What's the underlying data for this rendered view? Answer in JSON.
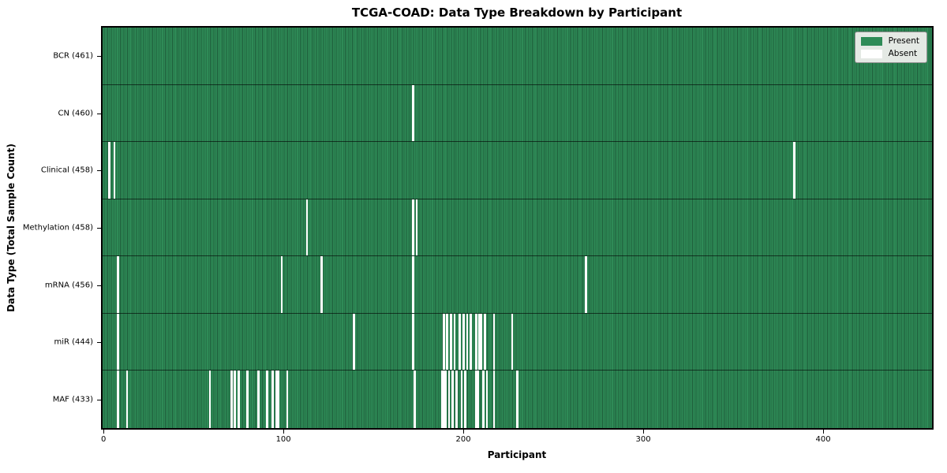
{
  "title": "TCGA-COAD: Data Type Breakdown by Participant",
  "xaxis": {
    "label": "Participant",
    "ticks": [
      "0",
      "100",
      "200",
      "300",
      "400"
    ],
    "tick_values": [
      0,
      100,
      200,
      300,
      400
    ]
  },
  "yaxis": {
    "label": "Data Type (Total Sample Count)"
  },
  "legend": {
    "present_label": "Present",
    "absent_label": "Absent"
  },
  "colors": {
    "present": "#2e8b57",
    "present_edge": "#1e5c3a",
    "absent": "#ffffff",
    "row_divider": "#1a1a1a",
    "legend_bg": "#e4e9e4"
  },
  "chart_data": {
    "type": "heatmap",
    "title": "TCGA-COAD: Data Type Breakdown by Participant",
    "xlabel": "Participant",
    "ylabel": "Data Type (Total Sample Count)",
    "legend_entries": [
      "Present",
      "Absent"
    ],
    "n_participants": 461,
    "x_range": [
      0,
      460
    ],
    "x_ticks": [
      0,
      100,
      200,
      300,
      400
    ],
    "value_encoding": {
      "present": 1,
      "absent": 0
    },
    "rows": [
      {
        "label": "BCR (461)",
        "data_type": "BCR",
        "present_count": 461,
        "absent_participants": []
      },
      {
        "label": "CN (460)",
        "data_type": "CN",
        "present_count": 460,
        "absent_participants": [
          172
        ]
      },
      {
        "label": "Clinical (458)",
        "data_type": "Clinical",
        "present_count": 458,
        "absent_participants": [
          3,
          6,
          384
        ]
      },
      {
        "label": "Methylation (458)",
        "data_type": "Methylation",
        "present_count": 458,
        "absent_participants": [
          113,
          172,
          174
        ]
      },
      {
        "label": "mRNA (456)",
        "data_type": "mRNA",
        "present_count": 456,
        "absent_participants": [
          8,
          99,
          121,
          172,
          268
        ]
      },
      {
        "label": "miR (444)",
        "data_type": "miR",
        "present_count": 444,
        "absent_participants": [
          8,
          139,
          172,
          189,
          191,
          193,
          195,
          198,
          200,
          202,
          204,
          207,
          209,
          210,
          212,
          217,
          227
        ]
      },
      {
        "label": "MAF (433)",
        "data_type": "MAF",
        "present_count": 433,
        "absent_participants": [
          8,
          13,
          59,
          71,
          73,
          75,
          80,
          86,
          91,
          94,
          96,
          97,
          102,
          173,
          188,
          189,
          190,
          192,
          194,
          196,
          199,
          201,
          207,
          208,
          211,
          213,
          217,
          230
        ]
      }
    ]
  }
}
